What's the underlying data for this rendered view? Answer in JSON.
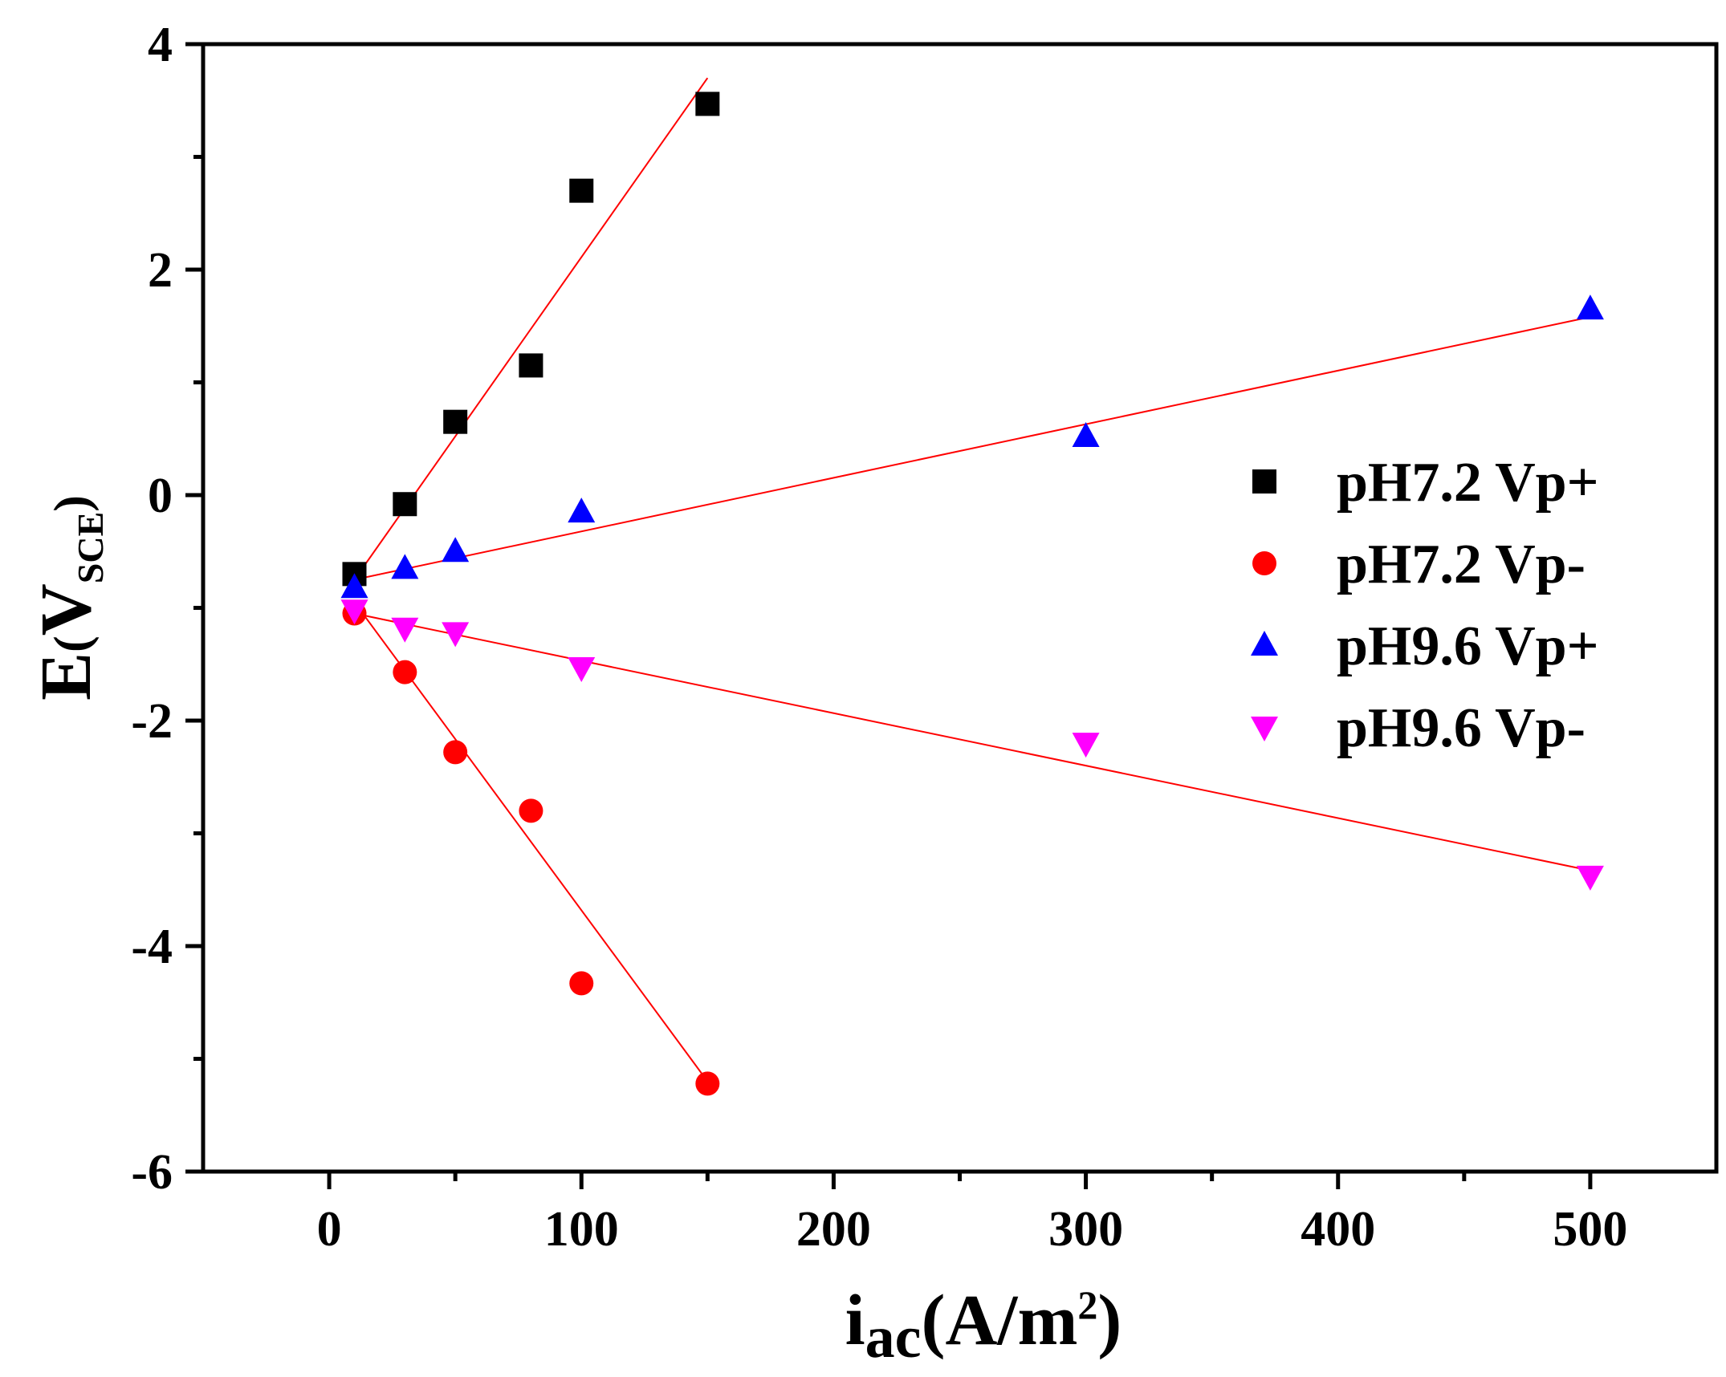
{
  "chart_data": {
    "type": "scatter",
    "title": "",
    "xlabel": {
      "main": "i",
      "sub": "ac",
      "paren": "(A/m",
      "sup": "2",
      "close": ")"
    },
    "ylabel": {
      "main": "E",
      "open": "(",
      "v": "V",
      "sub": "SCE",
      "close": ")"
    },
    "xlim": [
      -50,
      550
    ],
    "ylim": [
      -6,
      4
    ],
    "xticks": [
      0,
      100,
      200,
      300,
      400,
      500
    ],
    "xtick_labels": [
      "0",
      "100",
      "200",
      "300",
      "400",
      "500"
    ],
    "yticks": [
      -6,
      -4,
      -2,
      0,
      2,
      4
    ],
    "ytick_labels": [
      "-6",
      "-4",
      "-2",
      "0",
      "2",
      "4"
    ],
    "legend_position": "right",
    "fit_line_color": "#ff0000",
    "series": [
      {
        "name": "pH7.2 Vp+",
        "marker": "square",
        "color": "#000000",
        "x": [
          10,
          30,
          50,
          80,
          100,
          150
        ],
        "y": [
          -0.7,
          -0.08,
          0.65,
          1.15,
          2.7,
          3.47
        ],
        "fit": {
          "x": [
            10,
            150
          ],
          "y": [
            -0.75,
            3.7
          ]
        }
      },
      {
        "name": "pH7.2 Vp-",
        "marker": "circle",
        "color": "#ff0000",
        "x": [
          10,
          30,
          50,
          80,
          100,
          150
        ],
        "y": [
          -1.05,
          -1.57,
          -2.28,
          -2.8,
          -4.33,
          -5.22
        ],
        "fit": {
          "x": [
            10,
            150
          ],
          "y": [
            -0.95,
            -5.2
          ]
        }
      },
      {
        "name": "pH9.6 Vp+",
        "marker": "triangle-up",
        "color": "#0000ff",
        "x": [
          10,
          30,
          50,
          100,
          300,
          500
        ],
        "y": [
          -0.82,
          -0.65,
          -0.5,
          -0.15,
          0.52,
          1.65
        ],
        "fit": {
          "x": [
            10,
            500
          ],
          "y": [
            -0.75,
            1.58
          ]
        }
      },
      {
        "name": "pH9.6 Vp-",
        "marker": "triangle-down",
        "color": "#ff00ff",
        "x": [
          10,
          30,
          50,
          100,
          300,
          500
        ],
        "y": [
          -1.02,
          -1.18,
          -1.22,
          -1.53,
          -2.2,
          -3.38
        ],
        "fit": {
          "x": [
            10,
            500
          ],
          "y": [
            -1.05,
            -3.33
          ]
        }
      }
    ]
  }
}
